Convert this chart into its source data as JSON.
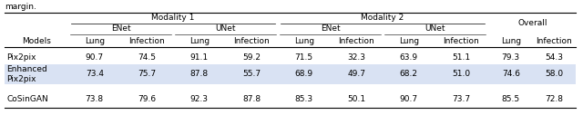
{
  "margin_text": "margin.",
  "col_headers_level1": [
    "Modality 1",
    "Modality 2",
    "Overall"
  ],
  "col_headers_level2": [
    "ENet",
    "UNet",
    "ENet",
    "UNet"
  ],
  "col_headers_level3": [
    "Lung",
    "Infection",
    "Lung",
    "Infection",
    "Lung",
    "Infection",
    "Lung",
    "Infection",
    "Lung",
    "Infection"
  ],
  "row_headers": [
    "Pix2pix",
    "Enhanced\nPix2pix",
    "CoSinGAN"
  ],
  "data": [
    [
      "90.7",
      "74.5",
      "91.1",
      "59.2",
      "71.5",
      "32.3",
      "63.9",
      "51.1",
      "79.3",
      "54.3"
    ],
    [
      "73.4",
      "75.7",
      "87.8",
      "55.7",
      "68.9",
      "49.7",
      "68.2",
      "51.0",
      "74.6",
      "58.0"
    ],
    [
      "73.8",
      "79.6",
      "92.3",
      "87.8",
      "85.3",
      "50.1",
      "90.7",
      "73.7",
      "85.5",
      "72.8"
    ]
  ],
  "highlight_row": 1,
  "highlight_color": "#d9e2f3",
  "background_color": "#ffffff",
  "font_size": 6.5,
  "header_font_size": 6.5
}
